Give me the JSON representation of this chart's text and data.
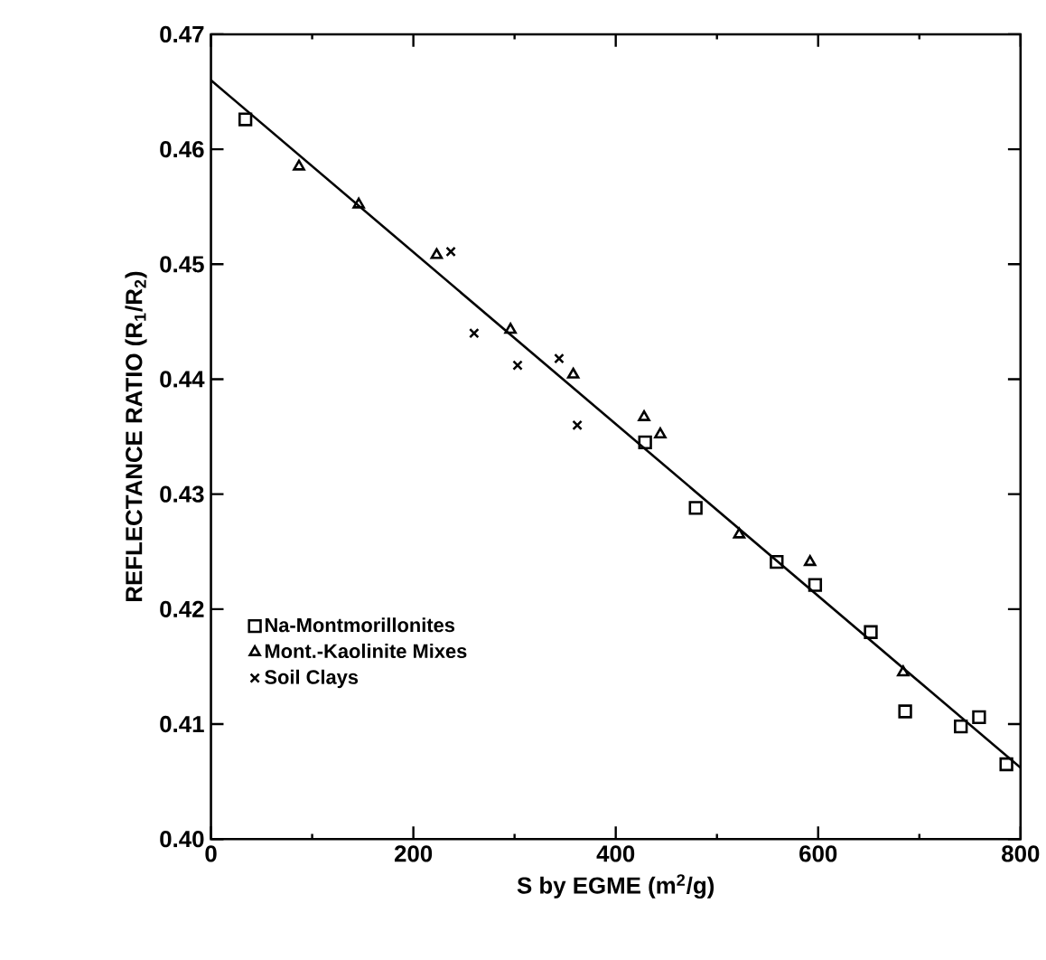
{
  "chart_data": {
    "type": "scatter",
    "xlabel": "S by EGME  (m$^{2}$/g)",
    "ylabel": "REFLECTANCE RATIO  (R$_{1}$/R$_{2}$)",
    "xlim": [
      0,
      800
    ],
    "ylim": [
      0.4,
      0.47
    ],
    "xticks": [
      0,
      200,
      400,
      600,
      800
    ],
    "yticks": [
      {
        "value": 0.4,
        "label": "0.40"
      },
      {
        "value": 0.41,
        "label": "0.41"
      },
      {
        "value": 0.42,
        "label": "0.42"
      },
      {
        "value": 0.43,
        "label": "0.43"
      },
      {
        "value": 0.44,
        "label": "0.44"
      },
      {
        "value": 0.45,
        "label": "0.45"
      },
      {
        "value": 0.46,
        "label": "0.46"
      },
      {
        "value": 0.47,
        "label": "0.47"
      }
    ],
    "grid": false,
    "legend": "bottom left",
    "series": [
      {
        "name": "Na-Montmorillonites",
        "color": "#000000",
        "marker": "square",
        "x": [
          34,
          429,
          479,
          559,
          597,
          652,
          686,
          741,
          759,
          786
        ],
        "values": [
          0.4626,
          0.4345,
          0.4288,
          0.4241,
          0.4221,
          0.418,
          0.4111,
          0.4098,
          0.4106,
          0.4065
        ]
      },
      {
        "name": "Mont.-Kaolinite Mixes",
        "color": "#000000",
        "marker": "triangle",
        "x": [
          87,
          146,
          223,
          296,
          358,
          428,
          444,
          522,
          592,
          684
        ],
        "values": [
          0.4585,
          0.4552,
          0.4508,
          0.4443,
          0.4404,
          0.4367,
          0.4352,
          0.4265,
          0.4241,
          0.4145
        ]
      },
      {
        "name": "Soil Clays",
        "color": "#000000",
        "marker": "cross",
        "x": [
          237,
          260,
          303,
          344,
          362
        ],
        "values": [
          0.4511,
          0.444,
          0.4412,
          0.4418,
          0.436
        ]
      },
      {
        "type": "line",
        "color": "#000000",
        "marker": "none",
        "line_style": "solid",
        "x": [
          0,
          800
        ],
        "values": [
          0.466,
          0.4062
        ]
      }
    ]
  }
}
